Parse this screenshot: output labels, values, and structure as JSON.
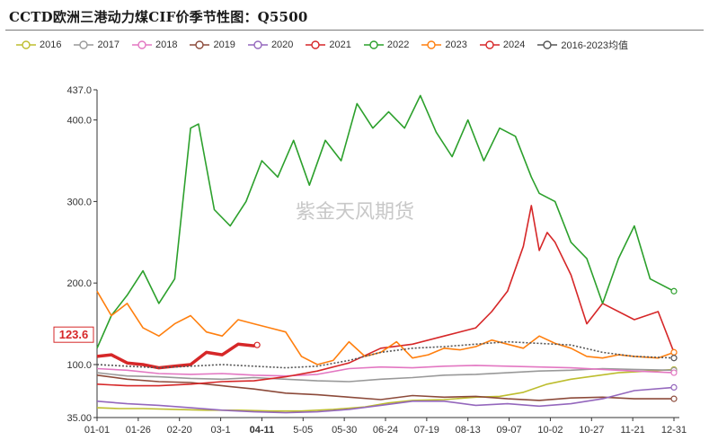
{
  "chart_data": {
    "type": "line",
    "title": "CCTD欧洲三港动力煤CIF价季节性图：Q5500",
    "ylim": [
      35,
      437
    ],
    "y_ticks": [
      35.0,
      100.0,
      200.0,
      300.0,
      400.0,
      437.0
    ],
    "y_tick_labels": [
      "35.00",
      "100.0",
      "200.0",
      "300.0",
      "400.0",
      "437.0"
    ],
    "x_tick_labels": [
      "01-01",
      "01-26",
      "02-20",
      "03-1",
      "04-11",
      "5-05",
      "05-30",
      "06-24",
      "07-19",
      "08-13",
      "09-07",
      "10-02",
      "10-27",
      "11-21",
      "12-31"
    ],
    "highlight_x_label": "04-11",
    "latest_value_label": "123.6",
    "watermark": "紫金天风期货",
    "grid": false,
    "legend_position": "top",
    "series": [
      {
        "name": "2016",
        "color": "#bdbd2e",
        "dashed": false,
        "x": [
          1,
          15,
          30,
          50,
          70,
          90,
          110,
          130,
          150,
          170,
          185,
          200,
          220,
          240,
          255,
          270,
          285,
          300,
          315,
          330,
          350,
          365
        ],
        "y": [
          47,
          46,
          46,
          45,
          44,
          44,
          43,
          43,
          45,
          48,
          53,
          56,
          57,
          60,
          61,
          66,
          76,
          82,
          86,
          90,
          92,
          94
        ]
      },
      {
        "name": "2017",
        "color": "#999999",
        "dashed": false,
        "x": [
          1,
          20,
          40,
          60,
          80,
          100,
          120,
          140,
          160,
          180,
          200,
          220,
          240,
          260,
          280,
          300,
          320,
          340,
          365
        ],
        "y": [
          90,
          86,
          85,
          83,
          82,
          84,
          82,
          80,
          79,
          82,
          84,
          87,
          88,
          90,
          92,
          93,
          95,
          94,
          93
        ]
      },
      {
        "name": "2018",
        "color": "#e377c2",
        "dashed": false,
        "x": [
          1,
          20,
          40,
          60,
          80,
          100,
          120,
          140,
          160,
          180,
          200,
          220,
          240,
          260,
          280,
          300,
          320,
          340,
          365
        ],
        "y": [
          95,
          93,
          89,
          88,
          89,
          87,
          86,
          88,
          95,
          97,
          96,
          98,
          99,
          98,
          97,
          96,
          94,
          92,
          90
        ]
      },
      {
        "name": "2019",
        "color": "#8c4a3a",
        "dashed": false,
        "x": [
          1,
          20,
          40,
          60,
          80,
          100,
          120,
          140,
          160,
          180,
          200,
          220,
          240,
          260,
          280,
          300,
          320,
          340,
          365
        ],
        "y": [
          87,
          82,
          79,
          78,
          74,
          70,
          65,
          63,
          60,
          57,
          62,
          60,
          61,
          58,
          56,
          59,
          60,
          58,
          58
        ]
      },
      {
        "name": "2020",
        "color": "#9467bd",
        "dashed": false,
        "x": [
          1,
          20,
          40,
          60,
          80,
          100,
          120,
          140,
          160,
          180,
          200,
          220,
          240,
          260,
          280,
          300,
          320,
          340,
          365
        ],
        "y": [
          55,
          52,
          50,
          47,
          44,
          42,
          41,
          42,
          45,
          50,
          55,
          55,
          50,
          52,
          49,
          52,
          58,
          68,
          72
        ]
      },
      {
        "name": "2021",
        "color": "#d62728",
        "dashed": false,
        "x": [
          1,
          20,
          40,
          60,
          80,
          100,
          120,
          140,
          160,
          180,
          200,
          220,
          240,
          250,
          260,
          270,
          275,
          280,
          285,
          290,
          300,
          310,
          320,
          340,
          355,
          365
        ],
        "y": [
          76,
          74,
          74,
          76,
          79,
          80,
          85,
          92,
          102,
          120,
          125,
          135,
          145,
          165,
          190,
          245,
          295,
          240,
          262,
          250,
          210,
          150,
          175,
          155,
          165,
          115
        ]
      },
      {
        "name": "2022",
        "color": "#2ca02c",
        "dashed": false,
        "x": [
          1,
          10,
          20,
          30,
          40,
          50,
          60,
          65,
          75,
          85,
          95,
          105,
          115,
          125,
          135,
          145,
          155,
          165,
          175,
          185,
          195,
          205,
          215,
          225,
          235,
          245,
          255,
          265,
          275,
          280,
          290,
          300,
          310,
          320,
          330,
          340,
          350,
          365
        ],
        "y": [
          120,
          160,
          185,
          215,
          175,
          205,
          390,
          395,
          290,
          270,
          300,
          350,
          330,
          375,
          320,
          375,
          350,
          420,
          390,
          410,
          390,
          430,
          385,
          355,
          400,
          350,
          390,
          380,
          330,
          310,
          300,
          250,
          230,
          175,
          230,
          270,
          205,
          190
        ]
      },
      {
        "name": "2023",
        "color": "#ff7f0e",
        "dashed": false,
        "x": [
          1,
          10,
          20,
          30,
          40,
          50,
          60,
          70,
          80,
          90,
          100,
          110,
          120,
          130,
          140,
          150,
          160,
          170,
          180,
          190,
          200,
          210,
          220,
          230,
          240,
          250,
          260,
          270,
          280,
          290,
          300,
          310,
          320,
          330,
          340,
          355,
          365
        ],
        "y": [
          190,
          160,
          175,
          145,
          135,
          150,
          160,
          140,
          135,
          155,
          150,
          145,
          140,
          110,
          100,
          105,
          128,
          110,
          115,
          128,
          108,
          112,
          120,
          118,
          122,
          130,
          125,
          120,
          135,
          126,
          120,
          110,
          108,
          112,
          110,
          108,
          115
        ]
      },
      {
        "name": "2024",
        "color": "#d62728",
        "dashed": false,
        "lineWidth": 3.5,
        "x": [
          1,
          10,
          20,
          30,
          40,
          50,
          60,
          70,
          80,
          90,
          100,
          102
        ],
        "y": [
          110,
          112,
          102,
          100,
          96,
          98,
          100,
          115,
          112,
          125,
          123,
          124
        ]
      },
      {
        "name": "2016-2023均值",
        "color": "#555555",
        "dashed": true,
        "x": [
          1,
          20,
          40,
          60,
          80,
          100,
          120,
          140,
          160,
          180,
          200,
          220,
          240,
          260,
          280,
          300,
          320,
          340,
          365
        ],
        "y": [
          100,
          98,
          96,
          98,
          100,
          98,
          96,
          98,
          105,
          115,
          120,
          122,
          125,
          128,
          126,
          124,
          115,
          110,
          108
        ]
      }
    ]
  }
}
